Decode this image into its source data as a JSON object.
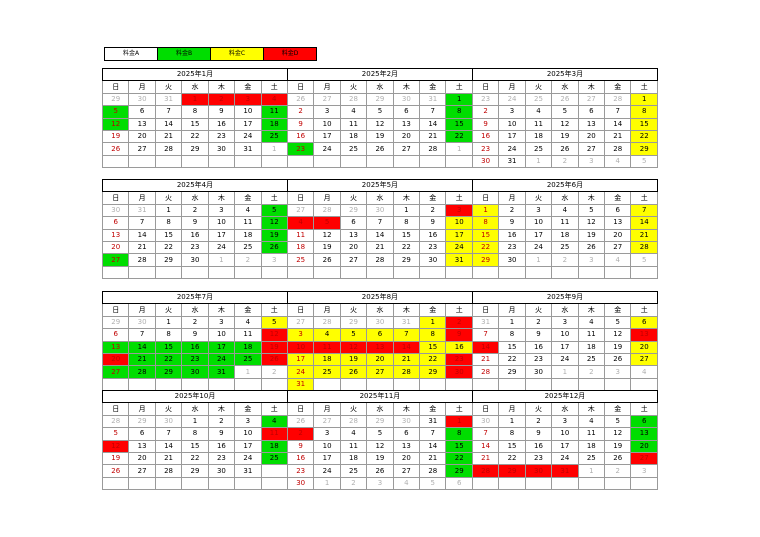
{
  "legend": [
    {
      "label": "料金A",
      "color": "#ffffff"
    },
    {
      "label": "料金B",
      "color": "#00dd00"
    },
    {
      "label": "料金C",
      "color": "#ffff00"
    },
    {
      "label": "料金D",
      "color": "#ff0000"
    }
  ],
  "weekdays": [
    "日",
    "月",
    "火",
    "水",
    "木",
    "金",
    "土"
  ],
  "rate_colors": {
    "A": "#ffffff",
    "B": "#00dd00",
    "C": "#ffff00",
    "D": "#ff0000"
  },
  "quarters": [
    {
      "months": [
        {
          "title": "2025年1月",
          "weeks": [
            [
              "o29B",
              "o30A",
              "o31A",
              "1D",
              "2D",
              "3D",
              "4D"
            ],
            [
              "5B",
              "6A",
              "7A",
              "8A",
              "9A",
              "10A",
              "11B"
            ],
            [
              "12B",
              "13A",
              "14A",
              "15A",
              "16A",
              "17A",
              "18B"
            ],
            [
              "19A",
              "20A",
              "21A",
              "22A",
              "23A",
              "24A",
              "25B"
            ],
            [
              "26A",
              "27A",
              "28A",
              "29A",
              "30A",
              "31A",
              "o1A"
            ],
            [
              "",
              "",
              "",
              "",
              "",
              "",
              ""
            ]
          ]
        },
        {
          "title": "2025年2月",
          "weeks": [
            [
              "o26A",
              "o27A",
              "o28A",
              "o29A",
              "o30A",
              "o31A",
              "1B"
            ],
            [
              "2A",
              "3A",
              "4A",
              "5A",
              "6A",
              "7A",
              "8B"
            ],
            [
              "9A",
              "10A",
              "11A",
              "12A",
              "13A",
              "14A",
              "15B"
            ],
            [
              "16A",
              "17A",
              "18A",
              "19A",
              "20A",
              "21A",
              "22B"
            ],
            [
              "23B",
              "24A",
              "25A",
              "26A",
              "27A",
              "28A",
              "o1A"
            ],
            [
              "",
              "",
              "",
              "",
              "",
              "",
              ""
            ]
          ]
        },
        {
          "title": "2025年3月",
          "weeks": [
            [
              "o23A",
              "o24A",
              "o25A",
              "o26A",
              "o27A",
              "o28A",
              "1C"
            ],
            [
              "2A",
              "3A",
              "4A",
              "5A",
              "6A",
              "7A",
              "8C"
            ],
            [
              "9A",
              "10A",
              "11A",
              "12A",
              "13A",
              "14A",
              "15C"
            ],
            [
              "16A",
              "17A",
              "18A",
              "19A",
              "20A",
              "21A",
              "22C"
            ],
            [
              "23A",
              "24A",
              "25A",
              "26A",
              "27A",
              "28A",
              "29C"
            ],
            [
              "30A",
              "31A",
              "o1A",
              "o2A",
              "o3A",
              "o4A",
              "o5A"
            ]
          ]
        }
      ]
    },
    {
      "months": [
        {
          "title": "2025年4月",
          "weeks": [
            [
              "o30A",
              "o31A",
              "1A",
              "2A",
              "3A",
              "4A",
              "5B"
            ],
            [
              "6A",
              "7A",
              "8A",
              "9A",
              "10A",
              "11A",
              "12B"
            ],
            [
              "13A",
              "14A",
              "15A",
              "16A",
              "17A",
              "18A",
              "19B"
            ],
            [
              "20A",
              "21A",
              "22A",
              "23A",
              "24A",
              "25A",
              "26B"
            ],
            [
              "27B",
              "28A",
              "29A",
              "30A",
              "o1A",
              "o2A",
              "o3A"
            ],
            [
              "",
              "",
              "",
              "",
              "",
              "",
              ""
            ]
          ]
        },
        {
          "title": "2025年5月",
          "weeks": [
            [
              "o27A",
              "o28A",
              "o29A",
              "o30A",
              "1A",
              "2A",
              "3D"
            ],
            [
              "4D",
              "5D",
              "6A",
              "7A",
              "8A",
              "9A",
              "10C"
            ],
            [
              "11A",
              "12A",
              "13A",
              "14A",
              "15A",
              "16A",
              "17C"
            ],
            [
              "18A",
              "19A",
              "20A",
              "21A",
              "22A",
              "23A",
              "24C"
            ],
            [
              "25A",
              "26A",
              "27A",
              "28A",
              "29A",
              "30A",
              "31C"
            ],
            [
              "",
              "",
              "",
              "",
              "",
              "",
              ""
            ]
          ]
        },
        {
          "title": "2025年6月",
          "weeks": [
            [
              "1C",
              "2A",
              "3A",
              "4A",
              "5A",
              "6A",
              "7C"
            ],
            [
              "8C",
              "9A",
              "10A",
              "11A",
              "12A",
              "13A",
              "14C"
            ],
            [
              "15C",
              "16A",
              "17A",
              "18A",
              "19A",
              "20A",
              "21C"
            ],
            [
              "22C",
              "23A",
              "24A",
              "25A",
              "26A",
              "27A",
              "28C"
            ],
            [
              "29C",
              "30A",
              "o1A",
              "o2A",
              "o3A",
              "o4A",
              "o5A"
            ],
            [
              "",
              "",
              "",
              "",
              "",
              "",
              ""
            ]
          ]
        }
      ]
    },
    {
      "months": [
        {
          "title": "2025年7月",
          "weeks": [
            [
              "o29A",
              "o30A",
              "1A",
              "2A",
              "3A",
              "4A",
              "5C"
            ],
            [
              "6A",
              "7A",
              "8A",
              "9A",
              "10A",
              "11A",
              "12D"
            ],
            [
              "13B",
              "14B",
              "15B",
              "16B",
              "17B",
              "18B",
              "19D"
            ],
            [
              "20D",
              "21B",
              "22B",
              "23B",
              "24B",
              "25B",
              "26D"
            ],
            [
              "27B",
              "28B",
              "29B",
              "30B",
              "31B",
              "o1A",
              "o2A"
            ],
            [
              "",
              "",
              "",
              "",
              "",
              "",
              ""
            ]
          ]
        },
        {
          "title": "2025年8月",
          "weeks": [
            [
              "o27A",
              "o28A",
              "o29A",
              "o30A",
              "o31A",
              "1C",
              "2D"
            ],
            [
              "3C",
              "4C",
              "5C",
              "6C",
              "7C",
              "8C",
              "9D"
            ],
            [
              "10D",
              "11D",
              "12D",
              "13D",
              "14D",
              "15C",
              "16C"
            ],
            [
              "17C",
              "18C",
              "19C",
              "20C",
              "21C",
              "22C",
              "23D"
            ],
            [
              "24C",
              "25C",
              "26C",
              "27C",
              "28C",
              "29C",
              "30D"
            ],
            [
              "31C",
              "",
              "",
              "",
              "",
              "",
              ""
            ]
          ]
        },
        {
          "title": "2025年9月",
          "weeks": [
            [
              "o31A",
              "1A",
              "2A",
              "3A",
              "4A",
              "5A",
              "6C"
            ],
            [
              "7A",
              "8A",
              "9A",
              "10A",
              "11A",
              "12A",
              "13D"
            ],
            [
              "14D",
              "15A",
              "16A",
              "17A",
              "18A",
              "19A",
              "20C"
            ],
            [
              "21A",
              "22A",
              "23A",
              "24A",
              "25A",
              "26A",
              "27C"
            ],
            [
              "28A",
              "29A",
              "30A",
              "o1A",
              "o2A",
              "o3A",
              "o4A"
            ],
            [
              "",
              "",
              "",
              "",
              "",
              "",
              ""
            ]
          ]
        }
      ]
    },
    {
      "months": [
        {
          "title": "2025年10月",
          "weeks": [
            [
              "o28A",
              "o29A",
              "o30A",
              "1A",
              "2A",
              "3A",
              "4B"
            ],
            [
              "5A",
              "6A",
              "7A",
              "8A",
              "9A",
              "10A",
              "11D"
            ],
            [
              "12D",
              "13A",
              "14A",
              "15A",
              "16A",
              "17A",
              "18B"
            ],
            [
              "19A",
              "20A",
              "21A",
              "22A",
              "23A",
              "24A",
              "25B"
            ],
            [
              "26A",
              "27A",
              "28A",
              "29A",
              "30A",
              "31A",
              ""
            ],
            [
              "",
              "",
              "",
              "",
              "",
              "",
              ""
            ]
          ]
        },
        {
          "title": "2025年11月",
          "weeks": [
            [
              "o26A",
              "o27A",
              "o28A",
              "o29A",
              "o30A",
              "31A",
              "1D"
            ],
            [
              "2D",
              "3A",
              "4A",
              "5A",
              "6A",
              "7A",
              "8B"
            ],
            [
              "9A",
              "10A",
              "11A",
              "12A",
              "13A",
              "14A",
              "15B"
            ],
            [
              "16A",
              "17A",
              "18A",
              "19A",
              "20A",
              "21A",
              "22B"
            ],
            [
              "23A",
              "24A",
              "25A",
              "26A",
              "27A",
              "28A",
              "29B"
            ],
            [
              "30A",
              "o1A",
              "o2A",
              "o3A",
              "o4A",
              "o5A",
              "o6A"
            ]
          ]
        },
        {
          "title": "2025年12月",
          "weeks": [
            [
              "o30A",
              "1A",
              "2A",
              "3A",
              "4A",
              "5A",
              "6B"
            ],
            [
              "7A",
              "8A",
              "9A",
              "10A",
              "11A",
              "12A",
              "13B"
            ],
            [
              "14A",
              "15A",
              "16A",
              "17A",
              "18A",
              "19A",
              "20B"
            ],
            [
              "21A",
              "22A",
              "23A",
              "24A",
              "25A",
              "26A",
              "27D"
            ],
            [
              "28D",
              "29D",
              "30D",
              "31D",
              "o1A",
              "o2A",
              "o3A"
            ],
            [
              "",
              "",
              "",
              "",
              "",
              "",
              ""
            ]
          ]
        }
      ]
    }
  ]
}
